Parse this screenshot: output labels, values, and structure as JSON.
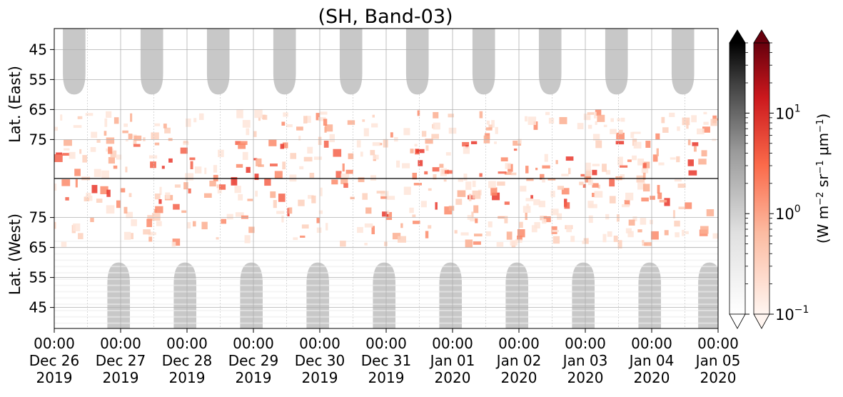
{
  "chart_data": {
    "type": "heatmap",
    "title": "(SH, Band-03)",
    "ylabel_top": "Lat. (East)",
    "ylabel_bottom": "Lat. (West)",
    "yticks_top": [
      "45",
      "55",
      "65",
      "75"
    ],
    "yticks_bottom": [
      "75",
      "65",
      "55",
      "45"
    ],
    "ytick_values_top": [
      45,
      55,
      65,
      75
    ],
    "ytick_values_bottom": [
      75,
      65,
      55,
      45
    ],
    "lat_range_each_half": [
      38,
      88
    ],
    "xticks": [
      {
        "time": "00:00",
        "date": "Dec 26",
        "year": "2019"
      },
      {
        "time": "00:00",
        "date": "Dec 27",
        "year": "2019"
      },
      {
        "time": "00:00",
        "date": "Dec 28",
        "year": "2019"
      },
      {
        "time": "00:00",
        "date": "Dec 29",
        "year": "2019"
      },
      {
        "time": "00:00",
        "date": "Dec 30",
        "year": "2019"
      },
      {
        "time": "00:00",
        "date": "Dec 31",
        "year": "2019"
      },
      {
        "time": "00:00",
        "date": "Jan 01",
        "year": "2020"
      },
      {
        "time": "00:00",
        "date": "Jan 02",
        "year": "2020"
      },
      {
        "time": "00:00",
        "date": "Jan 03",
        "year": "2020"
      },
      {
        "time": "00:00",
        "date": "Jan 04",
        "year": "2020"
      },
      {
        "time": "00:00",
        "date": "Jan 05",
        "year": "2020"
      }
    ],
    "x_range": [
      "2019-12-26 00:00",
      "2020-01-05 00:00"
    ],
    "colorbar": {
      "label": "(W m−2 sr−1 μm−1)",
      "scale": "log",
      "range": [
        0.1,
        50
      ],
      "ticks": [
        {
          "base": "10",
          "exp": "−1",
          "value": 0.1
        },
        {
          "base": "10",
          "exp": "0",
          "value": 1
        },
        {
          "base": "10",
          "exp": "1",
          "value": 10
        }
      ],
      "colormaps": [
        "Greys",
        "Reds"
      ],
      "extend": "both"
    },
    "grey_lobes_top_center_days": [
      0.3,
      1.47,
      2.47,
      3.47,
      4.47,
      5.47,
      6.47,
      7.47,
      8.47,
      9.47
    ],
    "grey_lobes_bottom_center_days": [
      0.97,
      1.97,
      2.97,
      3.97,
      4.97,
      5.97,
      6.97,
      7.97,
      8.97,
      9.87
    ],
    "grid": true,
    "colors": {
      "grey_region": "#c8c8c8",
      "aurora_low": "#fdd5c4",
      "aurora_mid": "#fb7050",
      "aurora_high": "#e9372b",
      "grid": "#b0b0b0"
    }
  }
}
